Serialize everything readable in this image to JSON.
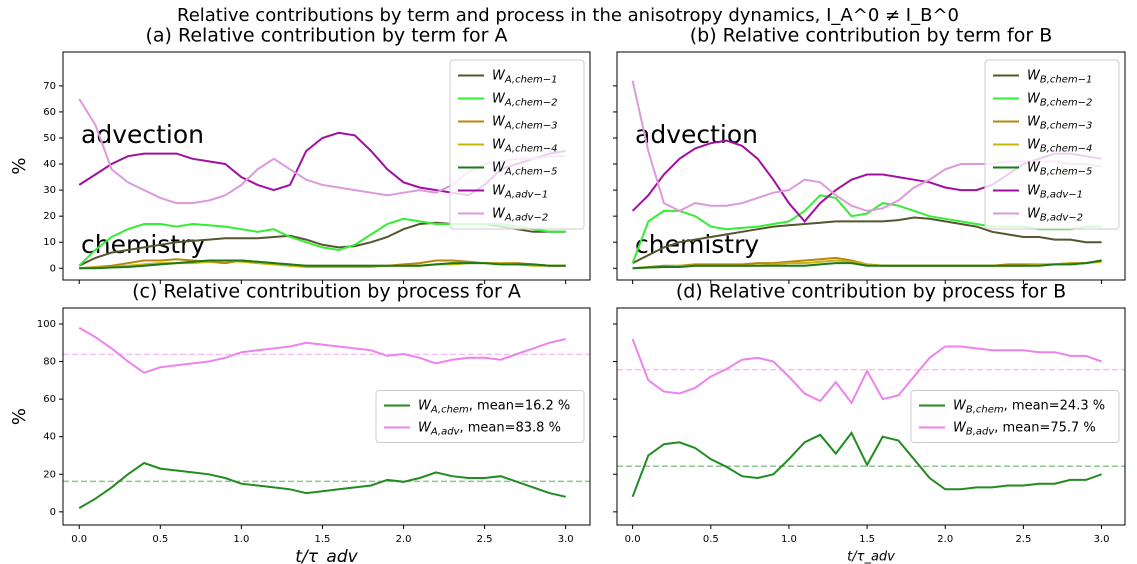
{
  "title": "Relative contributions by term and process in the anisotropy dynamics, I_A^0 ≠ I_B^0",
  "chart_data": [
    {
      "type": "line",
      "title": "(a) Relative contribution by term for A",
      "ylabel": "%",
      "x": [
        0,
        0.1,
        0.2,
        0.3,
        0.4,
        0.5,
        0.6,
        0.7,
        0.8,
        0.9,
        1,
        1.1,
        1.2,
        1.3,
        1.4,
        1.5,
        1.6,
        1.7,
        1.8,
        1.9,
        2,
        2.1,
        2.2,
        2.3,
        2.4,
        2.5,
        2.6,
        2.7,
        2.8,
        2.9,
        3
      ],
      "xlim": [
        -0.1,
        3.15
      ],
      "xticks": [
        0,
        0.5,
        1,
        1.5,
        2,
        2.5,
        3
      ],
      "xtick_labels": false,
      "ylim": [
        -4.5,
        83
      ],
      "yticks": [
        0,
        10,
        20,
        30,
        40,
        50,
        60,
        70
      ],
      "ytick_labels": true,
      "legend": "upper right",
      "annotations": [
        {
          "text": "advection",
          "color": "#ee82ee"
        },
        {
          "text": "chemistry",
          "color": "#bdb76b"
        }
      ],
      "series": [
        {
          "name": "WA,chem−1",
          "color": "#55552f",
          "values": [
            1,
            4,
            6,
            7,
            8,
            9,
            10,
            10.5,
            11,
            11.5,
            11.5,
            11.5,
            12,
            12.5,
            11,
            9,
            8,
            8.5,
            10,
            12,
            15,
            17,
            17.5,
            17,
            17,
            17,
            16,
            15,
            14,
            14,
            14
          ]
        },
        {
          "name": "WA,chem−2",
          "color": "#33ee33",
          "values": [
            1,
            7,
            12,
            15,
            17,
            17,
            16,
            17,
            16.5,
            16,
            15,
            14,
            15,
            12,
            10,
            8,
            7,
            9,
            13,
            17,
            19,
            18,
            17,
            17,
            17,
            17,
            17,
            16,
            15,
            14,
            14
          ]
        },
        {
          "name": "WA,chem−3",
          "color": "#b8860b",
          "values": [
            0,
            0.5,
            1,
            2,
            3,
            3,
            3.5,
            3,
            2.5,
            2,
            3,
            2.5,
            2,
            1,
            1,
            1,
            1,
            1,
            1,
            1,
            1.5,
            2,
            3,
            3,
            2.5,
            2,
            2,
            2,
            1.5,
            1,
            1
          ]
        },
        {
          "name": "WA,chem−4",
          "color": "#c8b40a",
          "values": [
            0,
            0.3,
            0.5,
            1,
            1.5,
            2,
            2,
            2,
            2.5,
            3,
            2.5,
            2,
            1.5,
            1,
            0.5,
            0.5,
            0.5,
            0.5,
            0.5,
            1,
            1,
            1,
            1.5,
            1.5,
            2,
            2,
            2,
            1.5,
            1,
            1,
            1
          ]
        },
        {
          "name": "WA,chem−5",
          "color": "#1a7a1a",
          "values": [
            0,
            0,
            0.3,
            0.5,
            1,
            1.5,
            2,
            2.5,
            3,
            3,
            3,
            2.5,
            2,
            1.5,
            1,
            1,
            1,
            1,
            1,
            1,
            1,
            1,
            1.5,
            2,
            2,
            2,
            1.5,
            1.5,
            1.5,
            1,
            1
          ]
        },
        {
          "name": "WA,adv−1",
          "color": "#a010a0",
          "values": [
            32,
            36,
            40,
            43,
            44,
            44,
            44,
            42,
            41,
            40,
            35,
            32,
            30,
            32,
            45,
            50,
            52,
            51,
            45,
            38,
            33,
            31,
            30,
            29,
            28,
            32,
            38,
            40,
            42,
            44,
            45
          ]
        },
        {
          "name": "WA,adv−2",
          "color": "#dd99dd",
          "values": [
            65,
            55,
            38,
            33,
            30,
            27,
            25,
            25,
            26,
            28,
            32,
            38,
            42,
            38,
            34,
            32,
            31,
            30,
            29,
            28,
            29,
            30,
            29,
            32,
            37,
            40,
            41,
            42,
            42,
            43,
            43
          ]
        }
      ]
    },
    {
      "type": "line",
      "title": "(b) Relative contribution by term for B",
      "x": [
        0,
        0.1,
        0.2,
        0.3,
        0.4,
        0.5,
        0.6,
        0.7,
        0.8,
        0.9,
        1,
        1.1,
        1.2,
        1.3,
        1.4,
        1.5,
        1.6,
        1.7,
        1.8,
        1.9,
        2,
        2.1,
        2.2,
        2.3,
        2.4,
        2.5,
        2.6,
        2.7,
        2.8,
        2.9,
        3
      ],
      "xlim": [
        -0.1,
        3.15
      ],
      "xticks": [
        0,
        0.5,
        1,
        1.5,
        2,
        2.5,
        3
      ],
      "xtick_labels": false,
      "ylim": [
        -4.5,
        83
      ],
      "yticks": [
        0,
        10,
        20,
        30,
        40,
        50,
        60,
        70
      ],
      "ytick_labels": false,
      "legend": "upper right",
      "annotations": [
        {
          "text": "advection",
          "color": "#ee82ee"
        },
        {
          "text": "chemistry",
          "color": "#bdb76b"
        }
      ],
      "series": [
        {
          "name": "WB,chem−1",
          "color": "#55552f",
          "values": [
            2,
            5,
            8,
            10,
            11,
            12,
            13,
            14,
            15,
            16,
            16.5,
            17,
            17.5,
            18,
            18,
            18,
            18,
            18.5,
            19.5,
            19,
            18,
            17,
            16,
            14,
            13,
            12,
            12,
            11,
            11,
            10,
            10
          ]
        },
        {
          "name": "WB,chem−2",
          "color": "#33ee33",
          "values": [
            2,
            18,
            22,
            22,
            20,
            16,
            15,
            15.5,
            16,
            17,
            18,
            22,
            28,
            27,
            20,
            21,
            25,
            24,
            22,
            20,
            19,
            18,
            17,
            16,
            16,
            16,
            15,
            15,
            15,
            16,
            16
          ]
        },
        {
          "name": "WB,chem−3",
          "color": "#b8860b",
          "values": [
            0,
            0.5,
            1,
            1,
            1.5,
            1.5,
            1.5,
            1.5,
            2,
            2,
            2.5,
            3,
            3.5,
            4,
            3,
            1.5,
            1,
            1,
            1,
            1,
            1,
            1,
            1,
            1,
            1.5,
            1.5,
            1.5,
            1.5,
            2,
            2,
            3
          ]
        },
        {
          "name": "WB,chem−4",
          "color": "#c8b40a",
          "values": [
            0,
            0.3,
            0.5,
            1,
            1,
            1,
            1,
            1,
            1,
            1.5,
            2,
            2,
            2.5,
            3,
            2.5,
            1.5,
            1,
            1,
            1,
            1,
            1,
            1,
            1,
            1,
            1,
            1,
            1.5,
            1.5,
            2,
            2,
            2.5
          ]
        },
        {
          "name": "WB,chem−5",
          "color": "#1a7a1a",
          "values": [
            0,
            0.3,
            0.5,
            0.5,
            1,
            1,
            1,
            1,
            1,
            1,
            1,
            1,
            1.5,
            2,
            2,
            1,
            1,
            1,
            1,
            1,
            1,
            1,
            1,
            1,
            1,
            1,
            1,
            1.5,
            1.5,
            2,
            3
          ]
        },
        {
          "name": "WB,adv−1",
          "color": "#a010a0",
          "values": [
            22,
            28,
            36,
            42,
            46,
            48,
            49,
            47,
            42,
            34,
            25,
            18,
            25,
            30,
            34,
            36,
            36,
            35,
            34,
            33,
            31,
            30,
            30,
            32,
            36,
            40,
            42,
            44,
            44,
            43,
            42
          ]
        },
        {
          "name": "WB,adv−2",
          "color": "#dd99dd",
          "values": [
            72,
            45,
            25,
            22,
            25,
            24,
            24,
            25,
            27,
            29,
            30,
            34,
            33,
            28,
            24,
            22,
            23,
            26,
            31,
            34,
            38,
            40,
            40,
            40,
            41,
            41,
            41,
            41,
            40,
            40,
            39
          ]
        }
      ]
    },
    {
      "type": "line",
      "title": "(c) Relative contribution by process for A",
      "ylabel": "%",
      "xlabel": "t/τ_adv",
      "x": [
        0,
        0.1,
        0.2,
        0.3,
        0.4,
        0.5,
        0.6,
        0.7,
        0.8,
        0.9,
        1,
        1.1,
        1.2,
        1.3,
        1.4,
        1.5,
        1.6,
        1.7,
        1.8,
        1.9,
        2,
        2.1,
        2.2,
        2.3,
        2.4,
        2.5,
        2.6,
        2.7,
        2.8,
        2.9,
        3
      ],
      "xlim": [
        -0.1,
        3.15
      ],
      "xticks": [
        {
          "value": 0,
          "label": "0.0"
        },
        0.5,
        {
          "value": 1,
          "label": "1.0"
        },
        1.5,
        {
          "value": 2,
          "label": "2.0"
        },
        2.5,
        {
          "value": 3,
          "label": "3.0"
        }
      ],
      "xtick_labels": true,
      "ylim": [
        -7,
        108.5
      ],
      "yticks": [
        0,
        20,
        40,
        60,
        80,
        100
      ],
      "ytick_labels": true,
      "legend": "center right",
      "series": [
        {
          "name": "WA,chem, mean=16.2 %",
          "color": "#228b22",
          "mean": 16.2,
          "values": [
            2,
            7,
            13,
            20,
            26,
            23,
            22,
            21,
            20,
            18,
            15,
            14,
            13,
            12,
            10,
            11,
            12,
            13,
            14,
            17,
            16,
            18,
            21,
            19,
            18,
            18,
            19,
            16,
            13,
            10,
            8
          ]
        },
        {
          "name": "WA,adv, mean=83.8 %",
          "color": "#ee82ee",
          "mean": 83.8,
          "values": [
            98,
            93,
            87,
            80,
            74,
            77,
            78,
            79,
            80,
            82,
            85,
            86,
            87,
            88,
            90,
            89,
            88,
            87,
            86,
            83,
            84,
            82,
            79,
            81,
            82,
            82,
            81,
            84,
            87,
            90,
            92
          ]
        }
      ]
    },
    {
      "type": "line",
      "title": "(d) Relative contribution by process for B",
      "xlabel": "t/τ_adv",
      "x": [
        0,
        0.1,
        0.2,
        0.3,
        0.4,
        0.5,
        0.6,
        0.7,
        0.8,
        0.9,
        1,
        1.1,
        1.2,
        1.3,
        1.4,
        1.5,
        1.6,
        1.7,
        1.8,
        1.9,
        2,
        2.1,
        2.2,
        2.3,
        2.4,
        2.5,
        2.6,
        2.7,
        2.8,
        2.9,
        3
      ],
      "xlim": [
        -0.1,
        3.15
      ],
      "xticks": [
        {
          "value": 0,
          "label": "0.0"
        },
        0.5,
        {
          "value": 1,
          "label": "1.0"
        },
        1.5,
        {
          "value": 2,
          "label": "2.0"
        },
        2.5,
        {
          "value": 3,
          "label": "3.0"
        }
      ],
      "xtick_labels": true,
      "ylim": [
        -7,
        108.5
      ],
      "yticks": [
        0,
        20,
        40,
        60,
        80,
        100
      ],
      "ytick_labels": false,
      "legend": "center right",
      "series": [
        {
          "name": "WB,chem, mean=24.3 %",
          "color": "#228b22",
          "mean": 24.3,
          "values": [
            8,
            30,
            36,
            37,
            34,
            28,
            24,
            19,
            18,
            20,
            28,
            37,
            41,
            31,
            42,
            25,
            40,
            38,
            28,
            18,
            12,
            12,
            13,
            13,
            14,
            14,
            15,
            15,
            17,
            17,
            20
          ]
        },
        {
          "name": "WB,adv, mean=75.7 %",
          "color": "#ee82ee",
          "mean": 75.7,
          "values": [
            92,
            70,
            64,
            63,
            66,
            72,
            76,
            81,
            82,
            80,
            72,
            63,
            59,
            69,
            58,
            75,
            60,
            62,
            72,
            82,
            88,
            88,
            87,
            86,
            86,
            86,
            85,
            85,
            83,
            83,
            80
          ]
        }
      ]
    }
  ]
}
